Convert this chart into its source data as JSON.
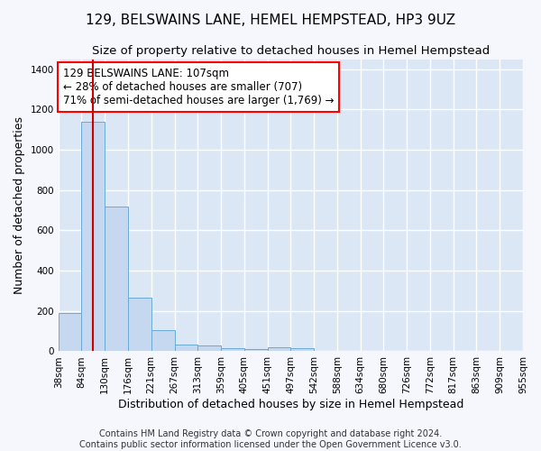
{
  "title": "129, BELSWAINS LANE, HEMEL HEMPSTEAD, HP3 9UZ",
  "subtitle": "Size of property relative to detached houses in Hemel Hempstead",
  "xlabel": "Distribution of detached houses by size in Hemel Hempstead",
  "ylabel": "Number of detached properties",
  "footer_line1": "Contains HM Land Registry data © Crown copyright and database right 2024.",
  "footer_line2": "Contains public sector information licensed under the Open Government Licence v3.0.",
  "annotation_line1": "129 BELSWAINS LANE: 107sqm",
  "annotation_line2": "← 28% of detached houses are smaller (707)",
  "annotation_line3": "71% of semi-detached houses are larger (1,769) →",
  "bar_values": [
    190,
    1140,
    720,
    265,
    107,
    35,
    28,
    15,
    12,
    20,
    15,
    0,
    0,
    0,
    0,
    0,
    0,
    0,
    0,
    0
  ],
  "bin_labels": [
    "38sqm",
    "84sqm",
    "130sqm",
    "176sqm",
    "221sqm",
    "267sqm",
    "313sqm",
    "359sqm",
    "405sqm",
    "451sqm",
    "497sqm",
    "542sqm",
    "588sqm",
    "634sqm",
    "680sqm",
    "726sqm",
    "772sqm",
    "817sqm",
    "863sqm",
    "909sqm",
    "955sqm"
  ],
  "bar_color": "#c5d8f0",
  "bar_edge_color": "#6aaad4",
  "marker_color": "#cc0000",
  "ylim": [
    0,
    1450
  ],
  "fig_background": "#f5f7fd",
  "ax_background": "#dce7f5",
  "grid_color": "#ffffff",
  "title_fontsize": 11,
  "subtitle_fontsize": 9.5,
  "axis_label_fontsize": 9,
  "tick_fontsize": 7.5,
  "annotation_fontsize": 8.5,
  "footer_fontsize": 7
}
